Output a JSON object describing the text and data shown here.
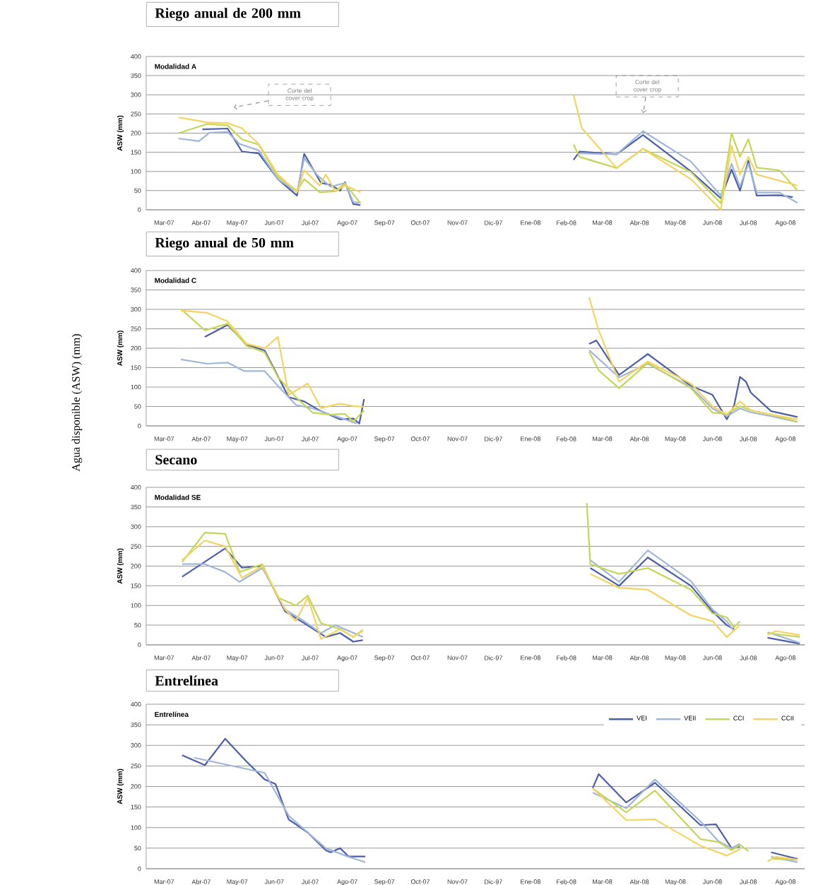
{
  "chart_data": [
    {
      "type": "line",
      "title": "Riego anual de 200 mm",
      "subtitle": "Modalidad A",
      "ylabel": "ASW (mm)",
      "grid": "y",
      "legend": false,
      "xlim": [
        "2007-03-01",
        "2008-09-01"
      ],
      "ylim": [
        0,
        400
      ],
      "yticks": [
        0,
        50,
        100,
        150,
        200,
        250,
        300,
        350,
        400
      ],
      "xticks": [
        {
          "value": "2007-03-16",
          "label": "Mar-07"
        },
        {
          "value": "2007-04-16",
          "label": "Abr-07"
        },
        {
          "value": "2007-05-16",
          "label": "May-07"
        },
        {
          "value": "2007-06-16",
          "label": "Jun-07"
        },
        {
          "value": "2007-07-16",
          "label": "Jul-07"
        },
        {
          "value": "2007-08-16",
          "label": "Ago-07"
        },
        {
          "value": "2007-09-16",
          "label": "Sep-07"
        },
        {
          "value": "2007-10-16",
          "label": "Oct-07"
        },
        {
          "value": "2007-11-16",
          "label": "Nov-07"
        },
        {
          "value": "2007-12-16",
          "label": "Dic-97"
        },
        {
          "value": "2008-01-16",
          "label": "Ene-08"
        },
        {
          "value": "2008-02-15",
          "label": "Feb-08"
        },
        {
          "value": "2008-03-16",
          "label": "Mar-08"
        },
        {
          "value": "2008-04-16",
          "label": "Abr-08"
        },
        {
          "value": "2008-05-16",
          "label": "May-08"
        },
        {
          "value": "2008-06-16",
          "label": "Jun-08"
        },
        {
          "value": "2008-07-16",
          "label": "Jul-08"
        },
        {
          "value": "2008-08-16",
          "label": "Ago-08"
        }
      ],
      "annotations": [
        "Corte del cover crop",
        "Corte del cover crop"
      ],
      "series": [
        {
          "color": "#4a5fa8",
          "x": [
            "2007-04-17",
            "2007-05-08",
            "2007-05-20",
            "2007-06-03",
            "2007-06-19",
            "2007-07-05",
            "2007-07-11",
            "2007-07-25",
            "2007-08-02",
            "2007-08-10",
            "2007-08-14",
            "2007-08-21",
            "2007-08-27",
            "2007-12-01",
            "2008-02-21",
            "2008-02-26",
            "2008-03-28",
            "2008-04-19",
            "2008-05-29",
            "2008-06-23",
            "2008-07-02",
            "2008-07-09",
            "2008-07-16",
            "2008-07-23",
            "2008-08-11",
            "2008-08-22"
          ],
          "values": [
            210,
            212,
            152,
            147,
            80,
            37,
            146,
            70,
            65,
            50,
            72,
            15,
            12,
            null,
            130,
            152,
            145,
            195,
            100,
            30,
            105,
            50,
            128,
            37,
            38,
            33
          ]
        },
        {
          "color": "#9fb6db",
          "x": [
            "2007-03-28",
            "2007-04-14",
            "2007-04-23",
            "2007-05-08",
            "2007-05-18",
            "2007-06-03",
            "2007-06-19",
            "2007-07-05",
            "2007-07-11",
            "2007-07-22",
            "2007-08-02",
            "2007-08-14",
            "2007-08-21",
            "2007-08-27",
            "2007-12-01",
            "2008-02-26",
            "2008-03-28",
            "2008-04-19",
            "2008-05-29",
            "2008-06-23",
            "2008-07-02",
            "2008-07-09",
            "2008-07-16",
            "2008-07-23",
            "2008-08-11",
            "2008-08-26"
          ],
          "values": [
            186,
            179,
            201,
            203,
            172,
            155,
            80,
            46,
            135,
            90,
            60,
            70,
            20,
            18,
            null,
            147,
            145,
            205,
            126,
            37,
            120,
            60,
            120,
            45,
            45,
            18
          ]
        },
        {
          "color": "#c5d655",
          "x": [
            "2007-03-28",
            "2007-04-21",
            "2007-05-08",
            "2007-05-20",
            "2007-06-03",
            "2007-06-19",
            "2007-07-05",
            "2007-07-11",
            "2007-07-24",
            "2007-08-06",
            "2007-08-14",
            "2007-08-27",
            "2007-12-01",
            "2008-02-21",
            "2008-02-26",
            "2008-03-28",
            "2008-04-19",
            "2008-05-29",
            "2008-06-23",
            "2008-07-02",
            "2008-07-09",
            "2008-07-16",
            "2008-07-23",
            "2008-08-11",
            "2008-08-26"
          ],
          "values": [
            200,
            224,
            220,
            184,
            170,
            86,
            50,
            80,
            46,
            48,
            69,
            17,
            null,
            170,
            138,
            109,
            159,
            98,
            17,
            200,
            138,
            184,
            110,
            103,
            50
          ]
        },
        {
          "color": "#f4d35e",
          "x": [
            "2007-03-28",
            "2007-04-21",
            "2007-05-08",
            "2007-05-20",
            "2007-06-03",
            "2007-06-19",
            "2007-07-05",
            "2007-07-11",
            "2007-07-24",
            "2007-07-29",
            "2007-08-06",
            "2007-08-14",
            "2007-08-27",
            "2007-12-01",
            "2008-02-21",
            "2008-02-28",
            "2008-03-28",
            "2008-04-19",
            "2008-05-29",
            "2008-06-23",
            "2008-07-02",
            "2008-07-09",
            "2008-07-16",
            "2008-07-23",
            "2008-08-26"
          ],
          "values": [
            241,
            228,
            226,
            213,
            172,
            92,
            46,
            103,
            63,
            92,
            48,
            63,
            46,
            null,
            299,
            213,
            109,
            159,
            80,
            0,
            167,
            92,
            138,
            92,
            63
          ]
        }
      ]
    },
    {
      "type": "line",
      "title": "Riego anual de 50 mm",
      "subtitle": "Modalidad  C",
      "ylabel": "ASW (mm)",
      "grid": "y",
      "legend": false,
      "xlim": [
        "2007-03-01",
        "2008-09-01"
      ],
      "ylim": [
        0,
        400
      ],
      "yticks": [
        0,
        50,
        100,
        150,
        200,
        250,
        300,
        350,
        400
      ],
      "xticks": [
        {
          "value": "2007-03-16",
          "label": "Mar-07"
        },
        {
          "value": "2007-04-16",
          "label": "Abr-07"
        },
        {
          "value": "2007-05-16",
          "label": "May-07"
        },
        {
          "value": "2007-06-16",
          "label": "Jun-07"
        },
        {
          "value": "2007-07-16",
          "label": "Jul-07"
        },
        {
          "value": "2007-08-16",
          "label": "Ago-07"
        },
        {
          "value": "2007-09-16",
          "label": "Sep-07"
        },
        {
          "value": "2007-10-16",
          "label": "Oct-07"
        },
        {
          "value": "2007-11-16",
          "label": "Nov-07"
        },
        {
          "value": "2007-12-16",
          "label": "Dic-97"
        },
        {
          "value": "2008-01-16",
          "label": "Ene-08"
        },
        {
          "value": "2008-02-15",
          "label": "Feb-08"
        },
        {
          "value": "2008-03-16",
          "label": "Mar-08"
        },
        {
          "value": "2008-04-16",
          "label": "Abr-08"
        },
        {
          "value": "2008-05-16",
          "label": "May-08"
        },
        {
          "value": "2008-06-16",
          "label": "Jun-08"
        },
        {
          "value": "2008-07-16",
          "label": "Jul-08"
        },
        {
          "value": "2008-08-16",
          "label": "Ago-08"
        }
      ],
      "annotations": [
        "Agua disponible (ASW) (mm)"
      ],
      "series": [
        {
          "color": "#4a5fa8",
          "x": [
            "2007-04-19",
            "2007-05-08",
            "2007-05-24",
            "2007-06-08",
            "2007-06-28",
            "2007-07-11",
            "2007-07-25",
            "2007-08-10",
            "2007-08-21",
            "2007-08-26",
            "2007-08-30",
            "2007-12-01",
            "2008-03-05",
            "2008-03-11",
            "2008-03-30",
            "2008-04-23",
            "2008-05-29",
            "2008-06-16",
            "2008-06-28",
            "2008-07-04",
            "2008-07-09",
            "2008-07-14",
            "2008-07-18",
            "2008-08-04",
            "2008-08-26"
          ],
          "values": [
            229,
            260,
            209,
            194,
            74,
            63,
            38,
            17,
            19,
            6,
            69,
            null,
            211,
            220,
            131,
            185,
            103,
            80,
            17,
            51,
            126,
            114,
            86,
            38,
            23
          ]
        },
        {
          "color": "#9fb6db",
          "x": [
            "2007-03-30",
            "2007-04-21",
            "2007-05-08",
            "2007-05-22",
            "2007-06-08",
            "2007-06-19",
            "2007-07-04",
            "2007-07-18",
            "2007-08-02",
            "2007-08-14",
            "2007-08-24",
            "2007-12-01",
            "2008-03-05",
            "2008-03-30",
            "2008-04-23",
            "2008-05-29",
            "2008-06-16",
            "2008-06-28",
            "2008-07-09",
            "2008-07-18",
            "2008-08-04",
            "2008-08-26"
          ],
          "values": [
            171,
            160,
            163,
            141,
            141,
            103,
            54,
            45,
            29,
            17,
            6,
            null,
            195,
            125,
            160,
            100,
            45,
            25,
            45,
            35,
            25,
            10
          ]
        },
        {
          "color": "#c5d655",
          "x": [
            "2007-03-30",
            "2007-04-19",
            "2007-05-08",
            "2007-05-24",
            "2007-06-08",
            "2007-06-19",
            "2007-07-04",
            "2007-07-18",
            "2007-08-02",
            "2007-08-14",
            "2007-08-21",
            "2007-08-30",
            "2007-12-01",
            "2008-03-05",
            "2008-03-13",
            "2008-03-30",
            "2008-04-23",
            "2008-05-29",
            "2008-06-16",
            "2008-06-28",
            "2008-07-09",
            "2008-07-18",
            "2008-08-04",
            "2008-08-26"
          ],
          "values": [
            301,
            246,
            263,
            206,
            189,
            126,
            74,
            34,
            29,
            31,
            11,
            40,
            null,
            191,
            143,
            97,
            162,
            97,
            34,
            31,
            51,
            40,
            29,
            11
          ]
        },
        {
          "color": "#f4d35e",
          "x": [
            "2007-03-30",
            "2007-04-21",
            "2007-05-08",
            "2007-05-24",
            "2007-06-08",
            "2007-06-19",
            "2007-06-28",
            "2007-07-14",
            "2007-07-25",
            "2007-08-10",
            "2007-08-21",
            "2007-08-30",
            "2007-12-01",
            "2008-03-05",
            "2008-03-13",
            "2008-03-30",
            "2008-04-23",
            "2008-05-29",
            "2008-06-16",
            "2008-06-28",
            "2008-07-09",
            "2008-07-18",
            "2008-08-04",
            "2008-08-26"
          ],
          "values": [
            297,
            291,
            269,
            211,
            200,
            229,
            80,
            109,
            46,
            57,
            51,
            49,
            null,
            331,
            246,
            114,
            166,
            109,
            51,
            29,
            63,
            40,
            29,
            17
          ]
        }
      ]
    },
    {
      "type": "line",
      "title": "Secano",
      "subtitle": "Modalidad  SE",
      "ylabel": "ASW (mm)",
      "grid": "y",
      "legend": false,
      "xlim": [
        "2007-03-01",
        "2008-09-01"
      ],
      "ylim": [
        0,
        400
      ],
      "yticks": [
        0,
        50,
        100,
        150,
        200,
        250,
        300,
        350,
        400
      ],
      "xticks": [
        {
          "value": "2007-03-16",
          "label": "Mar-07"
        },
        {
          "value": "2007-04-16",
          "label": "Abr-07"
        },
        {
          "value": "2007-05-16",
          "label": "May-07"
        },
        {
          "value": "2007-06-16",
          "label": "Jun-07"
        },
        {
          "value": "2007-07-16",
          "label": "Jul-07"
        },
        {
          "value": "2007-08-16",
          "label": "Ago-07"
        },
        {
          "value": "2007-09-16",
          "label": "Sep-07"
        },
        {
          "value": "2007-10-16",
          "label": "Oct-07"
        },
        {
          "value": "2007-11-16",
          "label": "Nov-07"
        },
        {
          "value": "2007-12-16",
          "label": "Dic-97"
        },
        {
          "value": "2008-01-16",
          "label": "Ene-08"
        },
        {
          "value": "2008-02-15",
          "label": "Feb-08"
        },
        {
          "value": "2008-03-16",
          "label": "Mar-08"
        },
        {
          "value": "2008-04-16",
          "label": "Abr-08"
        },
        {
          "value": "2008-05-16",
          "label": "May-08"
        },
        {
          "value": "2008-06-16",
          "label": "Jun-08"
        },
        {
          "value": "2008-07-16",
          "label": "Jul-08"
        },
        {
          "value": "2008-08-16",
          "label": "Ago-08"
        }
      ],
      "series": [
        {
          "color": "#4a5fa8",
          "x": [
            "2007-03-31",
            "2007-05-06",
            "2007-05-20",
            "2007-06-06",
            "2007-06-25",
            "2007-07-11",
            "2007-07-29",
            "2007-08-10",
            "2007-08-21",
            "2007-08-29",
            "2007-12-01",
            "2008-03-06",
            "2008-03-30",
            "2008-04-23",
            "2008-05-29",
            "2008-06-16",
            "2008-06-28",
            "2008-07-04",
            "2008-07-18",
            "2008-08-01",
            "2008-08-28"
          ],
          "values": [
            173,
            245,
            196,
            200,
            85,
            55,
            20,
            30,
            8,
            12,
            null,
            195,
            150,
            222,
            150,
            85,
            50,
            40,
            null,
            18,
            3
          ]
        },
        {
          "color": "#9fb6db",
          "x": [
            "2007-03-31",
            "2007-04-19",
            "2007-05-06",
            "2007-05-18",
            "2007-06-06",
            "2007-06-25",
            "2007-07-11",
            "2007-07-25",
            "2007-08-06",
            "2007-08-29",
            "2007-12-01",
            "2008-03-06",
            "2008-03-30",
            "2008-04-23",
            "2008-05-29",
            "2008-06-16",
            "2008-06-28",
            "2008-07-04",
            "2008-07-18",
            "2008-08-01",
            "2008-08-28"
          ],
          "values": [
            205,
            205,
            185,
            160,
            195,
            90,
            60,
            30,
            50,
            20,
            null,
            215,
            160,
            240,
            162,
            90,
            60,
            35,
            null,
            32,
            5
          ]
        },
        {
          "color": "#c5d655",
          "x": [
            "2007-03-31",
            "2007-04-19",
            "2007-05-06",
            "2007-05-18",
            "2007-06-06",
            "2007-06-19",
            "2007-07-04",
            "2007-07-14",
            "2007-07-25",
            "2007-08-10",
            "2007-08-21",
            "2007-08-29",
            "2007-12-01",
            "2008-03-03",
            "2008-03-06",
            "2008-03-30",
            "2008-04-23",
            "2008-05-29",
            "2008-06-16",
            "2008-06-28",
            "2008-07-04",
            "2008-07-09",
            "2008-07-20",
            "2008-08-01",
            "2008-08-28"
          ],
          "values": [
            210,
            285,
            282,
            185,
            205,
            120,
            100,
            125,
            55,
            40,
            20,
            38,
            null,
            360,
            205,
            180,
            195,
            140,
            80,
            70,
            45,
            60,
            null,
            30,
            20
          ]
        },
        {
          "color": "#f4d35e",
          "x": [
            "2007-03-31",
            "2007-04-19",
            "2007-05-06",
            "2007-05-20",
            "2007-06-06",
            "2007-06-25",
            "2007-07-04",
            "2007-07-14",
            "2007-07-25",
            "2007-08-10",
            "2007-08-21",
            "2007-08-29",
            "2007-12-01",
            "2008-03-06",
            "2008-03-30",
            "2008-04-23",
            "2008-05-29",
            "2008-06-16",
            "2008-06-28",
            "2008-07-09",
            "2008-07-20",
            "2008-08-01",
            "2008-08-08",
            "2008-08-28"
          ],
          "values": [
            215,
            265,
            250,
            170,
            200,
            90,
            60,
            120,
            15,
            40,
            20,
            35,
            null,
            180,
            145,
            140,
            75,
            60,
            20,
            50,
            null,
            25,
            35,
            25
          ]
        }
      ]
    },
    {
      "type": "line",
      "title": "Entrelínea",
      "subtitle": "Entrelínea",
      "ylabel": "ASW (mm)",
      "grid": "y",
      "legend": "top right",
      "xlim": [
        "2007-03-01",
        "2008-09-01"
      ],
      "ylim": [
        0,
        400
      ],
      "yticks": [
        0,
        50,
        100,
        150,
        200,
        250,
        300,
        350,
        400
      ],
      "xticks": [
        {
          "value": "2007-03-16",
          "label": "Mar-07"
        },
        {
          "value": "2007-04-16",
          "label": "Abr-07"
        },
        {
          "value": "2007-05-16",
          "label": "May-07"
        },
        {
          "value": "2007-06-16",
          "label": "Jun-07"
        },
        {
          "value": "2007-07-16",
          "label": "Jul-07"
        },
        {
          "value": "2007-08-16",
          "label": "Ago-07"
        },
        {
          "value": "2007-09-16",
          "label": "Sep-07"
        },
        {
          "value": "2007-10-16",
          "label": "Oct-07"
        },
        {
          "value": "2007-11-16",
          "label": "Nov-07"
        },
        {
          "value": "2007-12-16",
          "label": "Dic-97"
        },
        {
          "value": "2008-01-16",
          "label": "Ene-08"
        },
        {
          "value": "2008-02-15",
          "label": "Feb-08"
        },
        {
          "value": "2008-03-16",
          "label": "Mar-08"
        },
        {
          "value": "2008-04-16",
          "label": "Abr-08"
        },
        {
          "value": "2008-05-16",
          "label": "May-08"
        },
        {
          "value": "2008-06-16",
          "label": "Jun-08"
        },
        {
          "value": "2008-07-16",
          "label": "Jul-08"
        },
        {
          "value": "2008-08-16",
          "label": "Ago-08"
        }
      ],
      "series": [
        {
          "name": "VEI",
          "color": "#4a5fa8",
          "x": [
            "2007-03-31",
            "2007-04-19",
            "2007-05-06",
            "2007-05-24",
            "2007-06-08",
            "2007-06-17",
            "2007-06-28",
            "2007-07-14",
            "2007-07-29",
            "2007-08-02",
            "2007-08-10",
            "2007-08-17",
            "2007-08-31",
            "2007-12-01",
            "2008-03-08",
            "2008-03-13",
            "2008-04-05",
            "2008-04-29",
            "2008-06-06",
            "2008-06-19",
            "2008-07-02",
            "2008-07-09",
            "2008-07-22",
            "2008-08-04",
            "2008-08-26"
          ],
          "values": [
            276,
            252,
            316,
            260,
            217,
            206,
            120,
            88,
            45,
            40,
            50,
            30,
            30,
            null,
            196,
            230,
            161,
            209,
            106,
            108,
            50,
            54,
            null,
            40,
            24
          ]
        },
        {
          "name": "VEII",
          "color": "#9fb6db",
          "x": [
            "2007-04-10",
            "2007-06-08",
            "2007-06-28",
            "2007-07-14",
            "2007-07-29",
            "2007-08-17",
            "2007-08-31",
            "2007-12-01",
            "2008-03-08",
            "2008-04-05",
            "2008-04-29",
            "2008-06-06",
            "2008-06-21",
            "2008-07-02",
            "2008-07-09",
            "2008-07-20",
            "2008-08-04",
            "2008-08-26"
          ],
          "values": [
            270,
            233,
            129,
            88,
            50,
            29,
            16,
            null,
            185,
            147,
            217,
            115,
            67,
            50,
            61,
            null,
            29,
            16
          ]
        },
        {
          "name": "CCI",
          "color": "#c5d655",
          "x": [
            "2008-03-08",
            "2008-04-05",
            "2008-04-29",
            "2008-06-06",
            "2008-06-21",
            "2008-07-02",
            "2008-07-09",
            "2008-07-16",
            "2008-07-25",
            "2008-08-04",
            "2008-08-26"
          ],
          "values": [
            195,
            137,
            190,
            72,
            65,
            45,
            58,
            43,
            null,
            24,
            22
          ]
        },
        {
          "name": "CCII",
          "color": "#f4d35e",
          "x": [
            "2008-03-08",
            "2008-04-05",
            "2008-04-29",
            "2008-06-06",
            "2008-06-28",
            "2008-07-09",
            "2008-07-22",
            "2008-08-01",
            "2008-08-08",
            "2008-08-26"
          ],
          "values": [
            196,
            118,
            120,
            56,
            32,
            47,
            null,
            18,
            29,
            22
          ]
        }
      ]
    }
  ]
}
